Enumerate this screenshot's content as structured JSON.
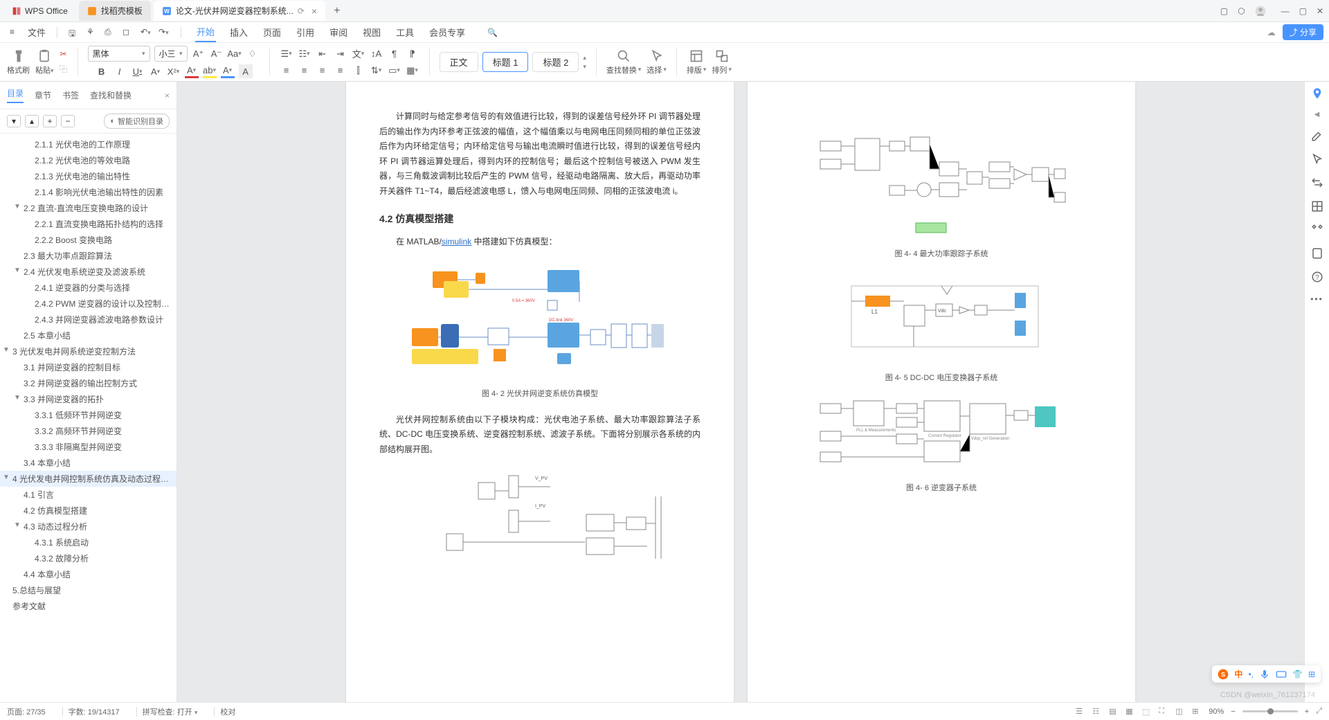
{
  "titlebar": {
    "app_name": "WPS Office",
    "tabs": [
      {
        "label": "找稻壳模板",
        "icon_color": "#f7931e"
      },
      {
        "label": "论文-光伏并网逆变器控制系统...",
        "icon_color": "#4894ff",
        "active": true
      }
    ]
  },
  "menubar": {
    "file_label": "文件",
    "items": [
      "开始",
      "插入",
      "页面",
      "引用",
      "审阅",
      "视图",
      "工具",
      "会员专享"
    ],
    "active_index": 0,
    "share_label": "分享"
  },
  "toolbar": {
    "format_brush": "格式刷",
    "paste": "粘贴",
    "font_name": "黑体",
    "font_size": "小三",
    "styles": {
      "normal": "正文",
      "heading1_label": "标题",
      "heading1_num": "1",
      "heading2_label": "标题",
      "heading2_num": "2"
    },
    "find_replace": "查找替换",
    "select": "选择",
    "layout": "排版",
    "arrange": "排列"
  },
  "leftpanel": {
    "tabs": [
      "目录",
      "章节",
      "书签",
      "查找和替换"
    ],
    "smart_toc": "智能识别目录",
    "toc": [
      {
        "level": 3,
        "label": "2.1.1 光伏电池的工作原理"
      },
      {
        "level": 3,
        "label": "2.1.2 光伏电池的等效电路"
      },
      {
        "level": 3,
        "label": "2.1.3 光伏电池的输出特性"
      },
      {
        "level": 3,
        "label": "2.1.4 影响光伏电池输出特性的因素"
      },
      {
        "level": 2,
        "label": "2.2 直流-直流电压变换电路的设计",
        "caret": "▼"
      },
      {
        "level": 3,
        "label": "2.2.1 直流变换电路拓扑结构的选择"
      },
      {
        "level": 3,
        "label": "2.2.2 Boost 变换电路"
      },
      {
        "level": 2,
        "label": "2.3 最大功率点跟踪算法"
      },
      {
        "level": 2,
        "label": "2.4 光伏发电系统逆变及滤波系统",
        "caret": "▼"
      },
      {
        "level": 3,
        "label": "2.4.1 逆变器的分类与选择"
      },
      {
        "level": 3,
        "label": "2.4.2 PWM 逆变器的设计以及控制方法的..."
      },
      {
        "level": 3,
        "label": "2.4.3 并网逆变器滤波电路参数设计"
      },
      {
        "level": 2,
        "label": "2.5 本章小结"
      },
      {
        "level": 1,
        "label": "3  光伏发电并网系统逆变控制方法",
        "caret": "▼"
      },
      {
        "level": 2,
        "label": "3.1  并网逆变器的控制目标"
      },
      {
        "level": 2,
        "label": "3.2  并网逆变器的输出控制方式"
      },
      {
        "level": 2,
        "label": "3.3  并网逆变器的拓扑",
        "caret": "▼"
      },
      {
        "level": 3,
        "label": "3.3.1  低频环节并网逆变"
      },
      {
        "level": 3,
        "label": "3.3.2  高频环节并网逆变"
      },
      {
        "level": 3,
        "label": "3.3.3  非隔离型并网逆变"
      },
      {
        "level": 2,
        "label": "3.4 本章小结"
      },
      {
        "level": 1,
        "label": "4  光伏发电并网控制系统仿真及动态过程分析",
        "caret": "▼",
        "active": true
      },
      {
        "level": 2,
        "label": "4.1 引言"
      },
      {
        "level": 2,
        "label": "4.2 仿真模型搭建"
      },
      {
        "level": 2,
        "label": "4.3 动态过程分析",
        "caret": "▼"
      },
      {
        "level": 3,
        "label": "4.3.1 系统启动"
      },
      {
        "level": 3,
        "label": "4.3.2 故障分析"
      },
      {
        "level": 2,
        "label": "4.4 本章小结"
      },
      {
        "level": 1,
        "label": "5.总结与展望"
      },
      {
        "level": 1,
        "label": "参考文献"
      }
    ]
  },
  "document": {
    "page1": {
      "para1": "计算同时与给定参考信号的有效值进行比较，得到的误差信号经外环 PI 调节器处理后的输出作为内环参考正弦波的幅值，这个幅值乘以与电网电压同频同相的单位正弦波后作为内环给定信号；内环给定信号与输出电流瞬时值进行比较，得到的误差信号经内环 PI 调节器运算处理后，得到内环的控制信号；最后这个控制信号被送入 PWM 发生器，与三角载波调制比较后产生的 PWM 信号，经驱动电路隔离、放大后，再驱动功率开关器件 T1~T4，最后经滤波电感 L，馈入与电网电压同频、同相的正弦波电流 i。",
      "heading": "4.2 仿真模型搭建",
      "para2_prefix": "在 MATLAB/",
      "para2_link": "simulink",
      "para2_suffix": " 中搭建如下仿真模型：",
      "fig1_caption": "图 4- 2 光伏并网逆变系统仿真模型",
      "para3": "光伏并网控制系统由以下子模块构成：光伏电池子系统、最大功率跟踪算法子系统、DC-DC 电压变换系统、逆变器控制系统、滤波子系统。下面将分别展示各系统的内部结构展开图。"
    },
    "page2": {
      "fig1_caption": "图 4- 4 最大功率跟踪子系统",
      "fig2_caption": "图 4- 5 DC-DC 电压变换器子系统",
      "fig3_caption": "图 4- 6 逆变器子系统",
      "label_L1": "L1"
    },
    "diagrams": {
      "colors": {
        "orange": "#f7931e",
        "yellow": "#f9d94a",
        "blue": "#5aa5e0",
        "darkblue": "#3a6db5",
        "teal": "#4dc7c0",
        "gray": "#888888",
        "line": "#6a8cc7"
      }
    }
  },
  "statusbar": {
    "page": "页面: 27/35",
    "word_count": "字数: 19/14317",
    "spell_check": "拼写检查: 打开",
    "proofread": "校对",
    "zoom": "90%",
    "watermark": "CSDN @weixin_761237174"
  },
  "ime": {
    "lang": "中"
  }
}
